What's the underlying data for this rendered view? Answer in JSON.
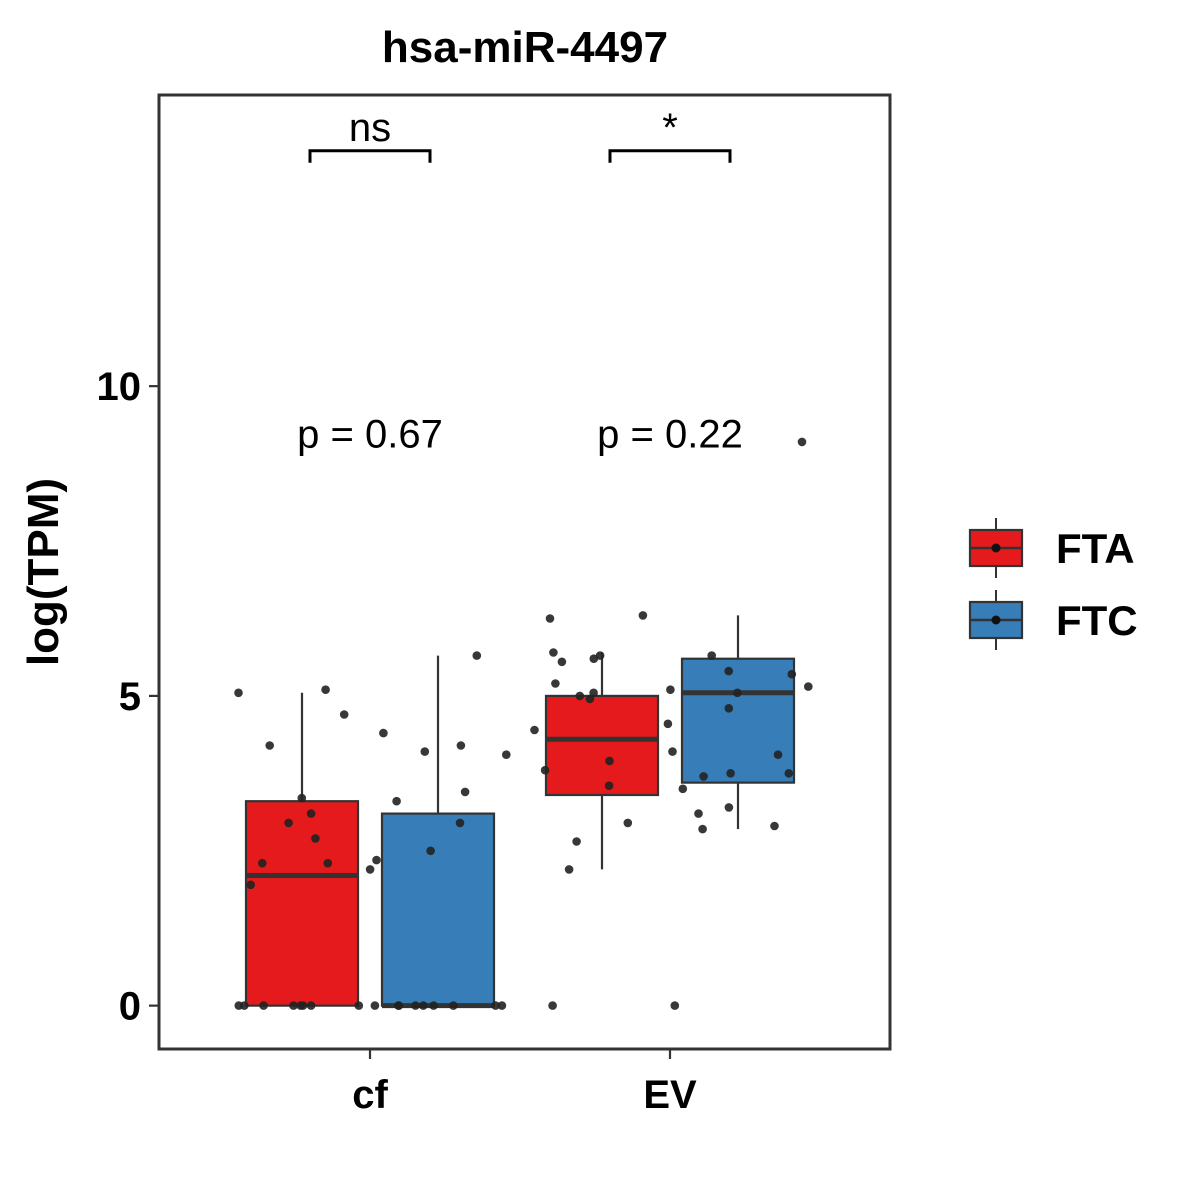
{
  "chart_data": {
    "type": "box",
    "title": "hsa-miR-4497",
    "xlabel": "",
    "ylabel": "log(TPM)",
    "categories": [
      "cf",
      "EV"
    ],
    "ylim": [
      -0.7,
      14.7
    ],
    "yticks": [
      0,
      5,
      10
    ],
    "grid": false,
    "legend_position": "right",
    "series": [
      {
        "name": "FTA",
        "color": "#E41A1C",
        "boxes": [
          {
            "category": "cf",
            "q1": 0.0,
            "median": 2.1,
            "q3": 3.3,
            "whisker_low": 0.0,
            "whisker_high": 5.05,
            "points": [
              0,
              0,
              0,
              0,
              0,
              0,
              0,
              0,
              2.7,
              2.95,
              4.2,
              4.7,
              5.1,
              5.05,
              3.35,
              2.3,
              2.3,
              1.95,
              3.1
            ]
          },
          {
            "category": "EV",
            "q1": 3.4,
            "median": 4.3,
            "q3": 5.0,
            "whisker_low": 2.2,
            "whisker_high": 5.7,
            "points": [
              5.65,
              5.7,
              4.45,
              4.55,
              4.1,
              3.8,
              5.05,
              5.1,
              5.2,
              4.95,
              3.95,
              2.95,
              2.2,
              0,
              0,
              5.6,
              5.55,
              3.55,
              2.65,
              6.25,
              6.3,
              5.0
            ]
          }
        ]
      },
      {
        "name": "FTC",
        "color": "#377EB8",
        "boxes": [
          {
            "category": "cf",
            "q1": 0.0,
            "median": 0.0,
            "q3": 3.1,
            "whisker_low": 0.0,
            "whisker_high": 5.65,
            "points": [
              0,
              0,
              0,
              0,
              0,
              0,
              0,
              0,
              0,
              5.65,
              4.2,
              4.4,
              3.3,
              2.5,
              2.35,
              2.2,
              4.1,
              3.45,
              2.95,
              4.05
            ]
          },
          {
            "category": "EV",
            "q1": 3.6,
            "median": 5.05,
            "q3": 5.6,
            "whisker_low": 2.85,
            "whisker_high": 6.3,
            "points": [
              5.65,
              5.4,
              5.05,
              4.8,
              3.75,
              3.75,
              3.2,
              2.85,
              3.1,
              2.9,
              3.5,
              3.7,
              4.05,
              5.35,
              5.15,
              9.1
            ]
          }
        ]
      }
    ],
    "annotations": [
      {
        "category": "cf",
        "label": "p = 0.67",
        "y": 9.2
      },
      {
        "category": "EV",
        "label": "p = 0.22",
        "y": 9.2
      }
    ],
    "significance": [
      {
        "category": "cf",
        "label": "ns",
        "y": 13.8
      },
      {
        "category": "EV",
        "label": "*",
        "y": 13.8
      }
    ]
  }
}
